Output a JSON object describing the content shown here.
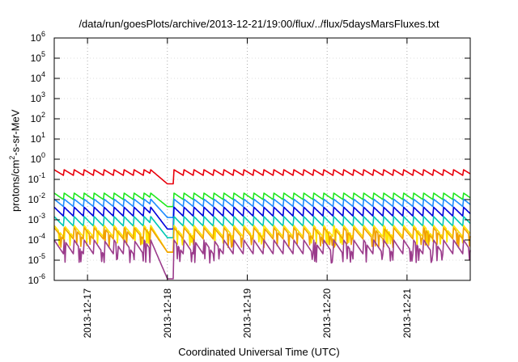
{
  "chart_data": {
    "type": "line",
    "title": "/data/run/goesPlots/archive/2013-12-21/19:00/flux/../flux/5daysMarsFluxes.txt",
    "xlabel": "Coordinated Universal Time (UTC)",
    "ylabel_prefix": "protons/cm",
    "ylabel_sup": "2",
    "ylabel_suffix": "-s-sr-MeV",
    "y_scale": "log",
    "ylim": [
      1e-06,
      1000000.0
    ],
    "y_ticks": [
      {
        "base": "10",
        "exp": "-6",
        "value": 1e-06
      },
      {
        "base": "10",
        "exp": "-5",
        "value": 1e-05
      },
      {
        "base": "10",
        "exp": "-4",
        "value": 0.0001
      },
      {
        "base": "10",
        "exp": "-3",
        "value": 0.001
      },
      {
        "base": "10",
        "exp": "-2",
        "value": 0.01
      },
      {
        "base": "10",
        "exp": "-1",
        "value": 0.1
      },
      {
        "base": "10",
        "exp": "0",
        "value": 1
      },
      {
        "base": "10",
        "exp": "1",
        "value": 10
      },
      {
        "base": "10",
        "exp": "2",
        "value": 100
      },
      {
        "base": "10",
        "exp": "3",
        "value": 1000
      },
      {
        "base": "10",
        "exp": "4",
        "value": 10000
      },
      {
        "base": "10",
        "exp": "5",
        "value": 100000
      },
      {
        "base": "10",
        "exp": "6",
        "value": 1000000
      }
    ],
    "xlim": [
      "2013-12-16 14:00",
      "2013-12-21 19:00"
    ],
    "x_ticks": [
      "2013-12-17",
      "2013-12-18",
      "2013-12-19",
      "2013-12-20",
      "2013-12-21"
    ],
    "grid": true,
    "legend": "none",
    "sawtooth_period_hours": 3,
    "dip_window": [
      "2013-12-17 19:00",
      "2013-12-18 02:00"
    ],
    "series": [
      {
        "color": "#e8000b",
        "base": 0.15,
        "rise": 2.0,
        "dip": 0.06,
        "noisy": false
      },
      {
        "color": "#1ee81e",
        "base": 0.0095,
        "rise": 2.2,
        "dip": 0.0045,
        "noisy": false
      },
      {
        "color": "#1e8cff",
        "base": 0.0042,
        "rise": 2.5,
        "dip": 0.0013,
        "noisy": false
      },
      {
        "color": "#0000dd",
        "base": 0.0014,
        "rise": 3.0,
        "dip": 0.00035,
        "noisy": false
      },
      {
        "color": "#00c8b4",
        "base": 0.00045,
        "rise": 3.2,
        "dip": 0.00013,
        "noisy": false
      },
      {
        "color": "#ffe600",
        "base": 0.00013,
        "rise": 4.0,
        "dip": 2.5e-05,
        "noisy": true
      },
      {
        "color": "#f0a000",
        "base": 0.0001,
        "rise": 4.0,
        "dip": 2.5e-05,
        "noisy": true
      },
      {
        "color": "#9b3c8c",
        "base": 1.8e-05,
        "rise": 5.5,
        "dip": 1.2e-06,
        "noisy": true
      }
    ]
  }
}
